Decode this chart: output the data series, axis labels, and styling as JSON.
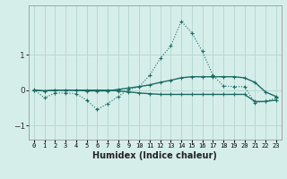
{
  "xlabel": "Humidex (Indice chaleur)",
  "bg_color": "#d6eeea",
  "line_color": "#1a6b63",
  "grid_color": "#b8d8d2",
  "xlim": [
    -0.5,
    23.5
  ],
  "ylim": [
    -1.4,
    2.4
  ],
  "yticks": [
    -1,
    0,
    1
  ],
  "xtick_labels": [
    "0",
    "1",
    "2",
    "3",
    "4",
    "5",
    "6",
    "7",
    "8",
    "9",
    "10",
    "11",
    "12",
    "13",
    "14",
    "15",
    "16",
    "17",
    "18",
    "19",
    "20",
    "21",
    "22",
    "23"
  ],
  "series1_x": [
    0,
    1,
    2,
    3,
    4,
    5,
    6,
    7,
    8,
    9,
    10,
    11,
    12,
    13,
    14,
    15,
    16,
    17,
    18,
    19,
    20,
    21,
    22,
    23
  ],
  "series1_y": [
    0.02,
    -0.22,
    -0.08,
    -0.08,
    -0.1,
    -0.28,
    -0.55,
    -0.38,
    -0.18,
    0.02,
    0.1,
    0.42,
    0.9,
    1.25,
    1.95,
    1.62,
    1.1,
    0.42,
    0.12,
    0.1,
    0.1,
    -0.35,
    -0.32,
    -0.22
  ],
  "series2_x": [
    0,
    1,
    2,
    3,
    4,
    5,
    6,
    7,
    8,
    9,
    10,
    11,
    12,
    13,
    14,
    15,
    16,
    17,
    18,
    19,
    20,
    21,
    22,
    23
  ],
  "series2_y": [
    0.0,
    -0.02,
    0.0,
    0.0,
    0.0,
    -0.02,
    -0.02,
    -0.02,
    0.02,
    0.06,
    0.1,
    0.15,
    0.22,
    0.28,
    0.35,
    0.38,
    0.38,
    0.38,
    0.38,
    0.38,
    0.35,
    0.22,
    -0.05,
    -0.18
  ],
  "series3_x": [
    0,
    1,
    2,
    3,
    4,
    5,
    6,
    7,
    8,
    9,
    10,
    11,
    12,
    13,
    14,
    15,
    16,
    17,
    18,
    19,
    20,
    21,
    22,
    23
  ],
  "series3_y": [
    0.0,
    -0.02,
    0.0,
    0.0,
    0.0,
    0.0,
    0.0,
    0.0,
    -0.02,
    -0.05,
    -0.08,
    -0.1,
    -0.12,
    -0.12,
    -0.12,
    -0.12,
    -0.12,
    -0.12,
    -0.12,
    -0.12,
    -0.12,
    -0.32,
    -0.32,
    -0.28
  ]
}
